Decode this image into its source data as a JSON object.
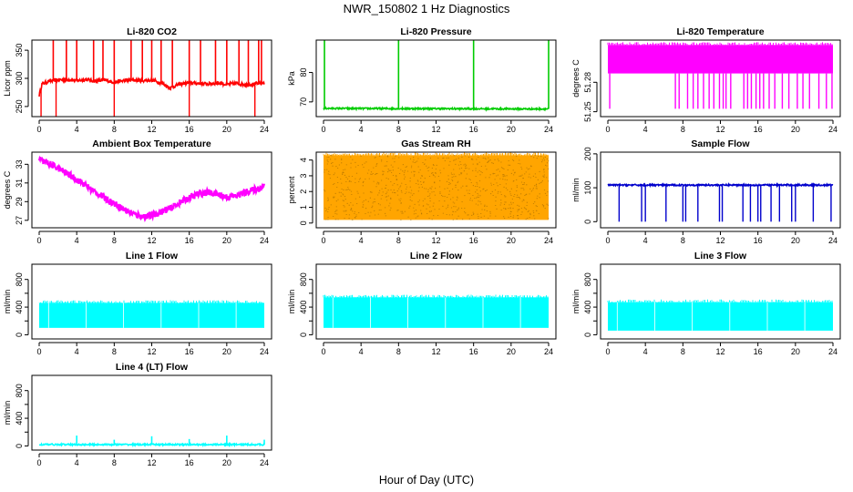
{
  "figure": {
    "title": "NWR_150802  1 Hz Diagnostics",
    "xlabel": "Hour of Day (UTC)"
  },
  "chart_data": [
    {
      "type": "line",
      "title": "Li-820 CO2",
      "ylabel": "Licor ppm",
      "xlim": [
        0,
        24
      ],
      "ylim": [
        232,
        368
      ],
      "yticks": [
        250,
        300,
        350
      ],
      "ytick_labels": [
        "250",
        "300",
        "350"
      ],
      "xticks": [
        0,
        4,
        8,
        12,
        16,
        20,
        24
      ],
      "color": "#ff0000",
      "series": [
        {
          "x": [
            0,
            0.3,
            1,
            2,
            3,
            4,
            5,
            6,
            7,
            8,
            9,
            10,
            11,
            12,
            13,
            14,
            15,
            16,
            17,
            18,
            19,
            20,
            21,
            22,
            23,
            24
          ],
          "values": [
            270,
            290,
            295,
            297,
            298,
            296,
            298,
            295,
            297,
            293,
            296,
            297,
            296,
            297,
            292,
            283,
            290,
            292,
            291,
            290,
            292,
            289,
            291,
            289,
            290,
            292
          ]
        }
      ],
      "spikes_up": [
        1.5,
        2.9,
        4.0,
        5.8,
        6.8,
        8.0,
        9.8,
        11.0,
        12.0,
        13.0,
        14.2,
        16.0,
        17.2,
        18.8,
        20.0,
        21.3,
        22.3,
        23.4,
        23.7
      ],
      "spikes_down": [
        0.2,
        1.8,
        8.0,
        16.0,
        23.0
      ]
    },
    {
      "type": "line",
      "title": "Li-820 Pressure",
      "ylabel": "kPa",
      "xlim": [
        0,
        24
      ],
      "ylim": [
        65,
        91
      ],
      "yticks": [
        70,
        80
      ],
      "ytick_labels": [
        "70",
        "80"
      ],
      "xticks": [
        0,
        4,
        8,
        12,
        16,
        20,
        24
      ],
      "color": "#00cc00",
      "series": [
        {
          "x": [
            0,
            24
          ],
          "values": [
            67.8,
            67.6
          ]
        }
      ],
      "spikes_up": [
        0.1,
        8.0,
        16.0,
        24.0
      ]
    },
    {
      "type": "line",
      "title": "Li-820 Temperature",
      "ylabel": "degrees C",
      "xlim": [
        0,
        24
      ],
      "ylim": [
        51.245,
        51.323
      ],
      "yticks": [
        51.25,
        51.28
      ],
      "ytick_labels": [
        "51.25",
        "51.28"
      ],
      "xticks": [
        0,
        4,
        8,
        12,
        16,
        20,
        24
      ],
      "color": "#ff00ff",
      "band": [
        51.289,
        51.318
      ],
      "spikes_down": [
        0.2,
        7.2,
        7.6,
        8.5,
        9.1,
        9.6,
        10.2,
        10.8,
        11.3,
        11.9,
        12.3,
        12.6,
        13.1,
        14.5,
        14.9,
        15.3,
        15.8,
        16.2,
        16.6,
        17.2,
        17.8,
        18.6,
        19.3,
        20.2,
        20.8,
        21.5,
        22.5,
        23.3,
        23.9
      ],
      "spike_low": 51.253
    },
    {
      "type": "line",
      "title": "Ambient Box Temperature",
      "ylabel": "degrees C",
      "xlim": [
        0,
        24
      ],
      "ylim": [
        26.2,
        34.3
      ],
      "yticks": [
        27,
        29,
        31,
        33
      ],
      "ytick_labels": [
        "27",
        "29",
        "31",
        "33"
      ],
      "xticks": [
        0,
        4,
        8,
        12,
        16,
        20,
        24
      ],
      "color": "#ff00ff",
      "series": [
        {
          "x": [
            0,
            1,
            2,
            3,
            4,
            5,
            6,
            7,
            8,
            9,
            10,
            11,
            12,
            13,
            14,
            15,
            16,
            17,
            18,
            19,
            20,
            21,
            22,
            23,
            24
          ],
          "values": [
            33.5,
            33.1,
            32.6,
            32.0,
            31.4,
            30.7,
            30.0,
            29.4,
            28.8,
            28.2,
            27.7,
            27.4,
            27.5,
            27.9,
            28.3,
            28.9,
            29.4,
            29.8,
            30.0,
            29.8,
            29.5,
            29.6,
            30.0,
            30.3,
            30.6
          ]
        }
      ]
    },
    {
      "type": "line",
      "title": "Gas Stream RH",
      "ylabel": "percent",
      "xlim": [
        0,
        24
      ],
      "ylim": [
        -0.3,
        4.5
      ],
      "yticks": [
        0,
        1,
        2,
        3,
        4
      ],
      "ytick_labels": [
        "0",
        "1",
        "2",
        "3",
        "4"
      ],
      "xticks": [
        0,
        4,
        8,
        12,
        16,
        20,
        24
      ],
      "color": "#ffa500",
      "band": [
        0.2,
        4.3
      ]
    },
    {
      "type": "line",
      "title": "Sample Flow",
      "ylabel": "ml/min",
      "xlim": [
        0,
        24
      ],
      "ylim": [
        -18,
        205
      ],
      "yticks": [
        0,
        100,
        200
      ],
      "ytick_labels": [
        "0",
        "100",
        "200"
      ],
      "xticks": [
        0,
        4,
        8,
        12,
        16,
        20,
        24
      ],
      "color": "#0000cc",
      "series": [
        {
          "x": [
            0,
            24
          ],
          "values": [
            108,
            108
          ]
        }
      ],
      "spikes_down": [
        1.2,
        3.6,
        4.0,
        6.2,
        8.0,
        8.3,
        9.6,
        11.9,
        12.2,
        14.4,
        15.2,
        16.0,
        16.3,
        17.4,
        18.3,
        19.6,
        20.0,
        21.9,
        23.8
      ],
      "spike_low": 0
    },
    {
      "type": "line",
      "title": "Line 1 Flow",
      "ylabel": "ml/min",
      "xlim": [
        0,
        24
      ],
      "ylim": [
        -60,
        1020
      ],
      "yticks": [
        0,
        200,
        400,
        600,
        800
      ],
      "ytick_labels": [
        "0",
        "400",
        "800"
      ],
      "xticks": [
        0,
        4,
        8,
        12,
        16,
        20,
        24
      ],
      "color": "#00ffff",
      "band": [
        100,
        460
      ]
    },
    {
      "type": "line",
      "title": "Line 2 Flow",
      "ylabel": "ml/min",
      "xlim": [
        0,
        24
      ],
      "ylim": [
        -60,
        1020
      ],
      "yticks": [
        0,
        200,
        400,
        600,
        800
      ],
      "ytick_labels": [
        "0",
        "400",
        "800"
      ],
      "xticks": [
        0,
        4,
        8,
        12,
        16,
        20,
        24
      ],
      "color": "#00ffff",
      "band": [
        100,
        540
      ]
    },
    {
      "type": "line",
      "title": "Line 3 Flow",
      "ylabel": "ml/min",
      "xlim": [
        0,
        24
      ],
      "ylim": [
        -60,
        1020
      ],
      "yticks": [
        0,
        200,
        400,
        600,
        800
      ],
      "ytick_labels": [
        "0",
        "400",
        "800"
      ],
      "xticks": [
        0,
        4,
        8,
        12,
        16,
        20,
        24
      ],
      "color": "#00ffff",
      "band": [
        60,
        470
      ]
    },
    {
      "type": "line",
      "title": "Line 4 (LT) Flow",
      "ylabel": "ml/min",
      "xlim": [
        0,
        24
      ],
      "ylim": [
        -60,
        1020
      ],
      "yticks": [
        0,
        200,
        400,
        600,
        800
      ],
      "ytick_labels": [
        "0",
        "400",
        "800"
      ],
      "xticks": [
        0,
        4,
        8,
        12,
        16,
        20,
        24
      ],
      "color": "#00ffff",
      "series": [
        {
          "x": [
            0,
            24
          ],
          "values": [
            20,
            20
          ]
        }
      ],
      "spikes_up": [
        4.0,
        8.0,
        12.0,
        16.0,
        20.0,
        24.0
      ],
      "spike_high": [
        150,
        90,
        140,
        100,
        150,
        90
      ]
    }
  ]
}
